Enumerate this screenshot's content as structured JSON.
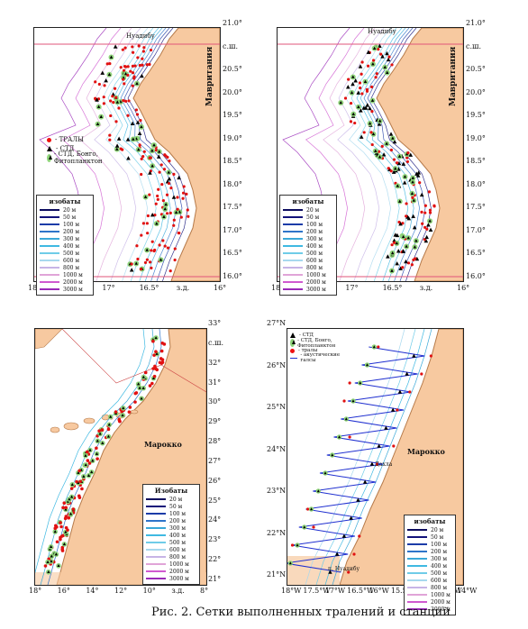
{
  "caption": "Рис. 2. Сетки выполненных тралений и станций",
  "panel1": {
    "lat_labels": [
      "21.0°",
      "с.ш.",
      "20.5°",
      "20.0°",
      "19.5°",
      "19.0°",
      "18.5°",
      "18.0°",
      "17.5°",
      "17.0°",
      "16.5°",
      "16.0°"
    ],
    "lon_labels": [
      "18°",
      "17.5°",
      "17°",
      "16.5°",
      "з.д.",
      "16°"
    ],
    "town": "Нуадибу",
    "country": "Мавритания",
    "station_key": {
      "trawls": "- ТРАЛЫ",
      "ctd": "- СТД",
      "ctd_bongo": "- СТД, Бонго, Фитопланктон"
    },
    "isobaths_title": "изобаты",
    "isobaths": [
      "20 м",
      "50 м",
      "100 м",
      "200 м",
      "300 м",
      "400 м",
      "500 м",
      "600 м",
      "800 м",
      "1000 м",
      "2000 м",
      "3000 м"
    ]
  },
  "panel2": {
    "lat_labels": [
      "21.0°",
      "с.ш.",
      "20.5°",
      "20.0°",
      "19.5°",
      "19.0°",
      "18.5°",
      "18.0°",
      "17.5°",
      "17.0°",
      "16.5°",
      "16.0°"
    ],
    "lon_labels": [
      "18°",
      "17.5°",
      "17°",
      "16.5°",
      "з.д.",
      "16°"
    ],
    "town": "Нуадибу",
    "country": "Мавритания",
    "isobaths_title": "изобаты",
    "isobaths": [
      "20 м",
      "50 м",
      "100 м",
      "200 м",
      "300 м",
      "400 м",
      "500 м",
      "600 м",
      "800 м",
      "1000 м",
      "2000 м",
      "3000 м"
    ]
  },
  "panel3": {
    "lat_labels": [
      "33°",
      "с.ш.",
      "32°",
      "31°",
      "30°",
      "29°",
      "28°",
      "27°",
      "26°",
      "25°",
      "24°",
      "23°",
      "22°",
      "21°"
    ],
    "lon_labels": [
      "18°",
      "16°",
      "14°",
      "12°",
      "10°",
      "з.д.",
      "8°"
    ],
    "country": "Марокко",
    "isobaths_title": "Изобаты",
    "isobaths": [
      "20 м",
      "50 м",
      "100 м",
      "200 м",
      "300 м",
      "400 м",
      "500 м",
      "600 м",
      "800 м",
      "1000 м",
      "2000 м",
      "3000 м"
    ]
  },
  "panel4": {
    "lat_labels": [
      "27°N",
      "26°N",
      "25°N",
      "24°N",
      "23°N",
      "22°N",
      "21°N"
    ],
    "lon_labels": [
      "18°W",
      "17.5°W",
      "17°W",
      "16.5°W",
      "16°W",
      "15.5°W",
      "15°W",
      "14.5°W",
      "14°W"
    ],
    "country": "Марокко",
    "town_dakhla": "Дахла",
    "town_nouadhibou": "п. Нуадибу",
    "station_key": {
      "ctd": "- СТД",
      "ctd_bongo": "- СТД, Бонго, Фитопланктон",
      "trawls": "- тралы",
      "acoustic": "- акустические галсы"
    },
    "isobaths_title": "изобаты",
    "isobaths": [
      "20 м",
      "50 м",
      "100 м",
      "200 м",
      "300 м",
      "400 м",
      "500 м",
      "600 м",
      "800 м",
      "1000 м",
      "2000 м",
      "3000 м"
    ]
  },
  "colors": {
    "land": "#f7c9a0",
    "coast": "#b67a4a",
    "trawl": "#e11111",
    "ctd": "#000000",
    "ctd_bongo_fill": "#8fd47a",
    "acoustic": "#1f2fd0",
    "isobath_colors": [
      "#0b0b5e",
      "#12127a",
      "#1c3ca8",
      "#2e74c9",
      "#3aa8d8",
      "#3fb9e2",
      "#6fcce8",
      "#a7d8ee",
      "#c7b4e6",
      "#e0a4d8",
      "#d05ad0",
      "#9a2ab8"
    ]
  }
}
